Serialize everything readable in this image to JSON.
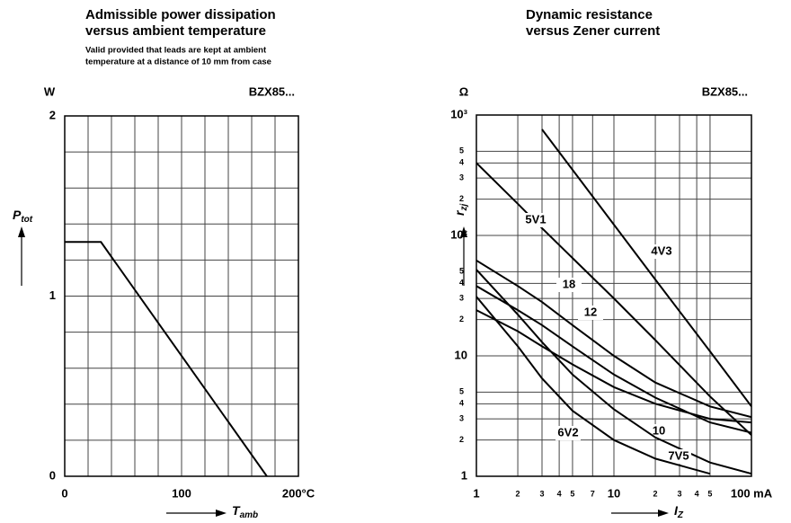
{
  "chart_data": [
    {
      "type": "line",
      "title": [
        "Admissible power dissipation",
        "versus ambient temperature"
      ],
      "subtitle": [
        "Valid provided that leads are kept at ambient",
        "temperature at a distance of 10 mm from case"
      ],
      "y_unit": "W",
      "type_label": "BZX85...",
      "ylabel": "P",
      "ylabel_sub": "tot",
      "xlabel": "T",
      "xlabel_sub": "amb",
      "xlim": [
        0,
        200
      ],
      "ylim": [
        0,
        2
      ],
      "xticks": [
        0,
        100,
        {
          "value": 200,
          "label": "200°C"
        }
      ],
      "yticks": [
        0,
        1,
        2
      ],
      "xgrid": [
        0,
        20,
        40,
        60,
        80,
        100,
        120,
        140,
        160,
        180,
        200
      ],
      "ygrid": [
        0,
        0.2,
        0.4,
        0.6,
        0.8,
        1,
        1.2,
        1.4,
        1.6,
        1.8,
        2
      ],
      "x": [
        0,
        31,
        173
      ],
      "series": [
        {
          "color": "#000000",
          "values": [
            1.3,
            1.3,
            0
          ]
        }
      ]
    },
    {
      "type": "line",
      "title": [
        "Dynamic resistance",
        "versus Zener current"
      ],
      "y_unit": "Ω",
      "type_label": "BZX85...",
      "ylabel": "r",
      "ylabel_sub": "zj",
      "xlabel": "I",
      "xlabel_sub": "Z",
      "xscale": "log",
      "yscale": "log",
      "xlim": [
        1,
        100
      ],
      "ylim": [
        1,
        1000
      ],
      "xticks": [
        1,
        2,
        3,
        4,
        5,
        7,
        10,
        {
          "value": 20,
          "label": "2"
        },
        {
          "value": 30,
          "label": "3"
        },
        {
          "value": 40,
          "label": "4"
        },
        {
          "value": 50,
          "label": "5"
        },
        {
          "value": 100,
          "label": "100 mA"
        }
      ],
      "yticks": [
        1,
        2,
        3,
        4,
        5,
        10,
        {
          "value": 20,
          "label": "2"
        },
        {
          "value": 30,
          "label": "3"
        },
        {
          "value": 40,
          "label": "4"
        },
        {
          "value": 50,
          "label": "5"
        },
        {
          "value": 100,
          "label": "10²"
        },
        {
          "value": 200,
          "label": "2"
        },
        {
          "value": 300,
          "label": "3"
        },
        {
          "value": 400,
          "label": "4"
        },
        {
          "value": 500,
          "label": "5"
        },
        {
          "value": 1000,
          "label": "10³"
        }
      ],
      "x": [
        1,
        2,
        3,
        5,
        10,
        20,
        50,
        100
      ],
      "series": [
        {
          "name": "4V3",
          "color": "#000000",
          "values": [
            null,
            null,
            760,
            351,
            123,
            43,
            10.9,
            3.8
          ]
        },
        {
          "name": "5V1",
          "color": "#000000",
          "values": [
            400,
            183,
            115,
            65,
            30,
            13.5,
            4.6,
            2.2
          ]
        },
        {
          "name": "18",
          "color": "#000000",
          "values": [
            62,
            38,
            28,
            18,
            10,
            6,
            3.8,
            3.1
          ]
        },
        {
          "name": "12",
          "color": "#000000",
          "values": [
            38,
            24,
            18,
            12,
            7,
            4.5,
            2.8,
            2.3
          ]
        },
        {
          "name": "10",
          "color": "#000000",
          "values": [
            24,
            16,
            12,
            8.5,
            5.5,
            4,
            3,
            2.8
          ]
        },
        {
          "name": "7V5",
          "color": "#000000",
          "values": [
            52,
            22,
            13,
            7,
            3.6,
            2.1,
            1.3,
            1.05
          ]
        },
        {
          "name": "6V2",
          "color": "#000000",
          "values": [
            31,
            12,
            6.5,
            3.5,
            2,
            1.4,
            1.05,
            null
          ]
        }
      ]
    }
  ]
}
